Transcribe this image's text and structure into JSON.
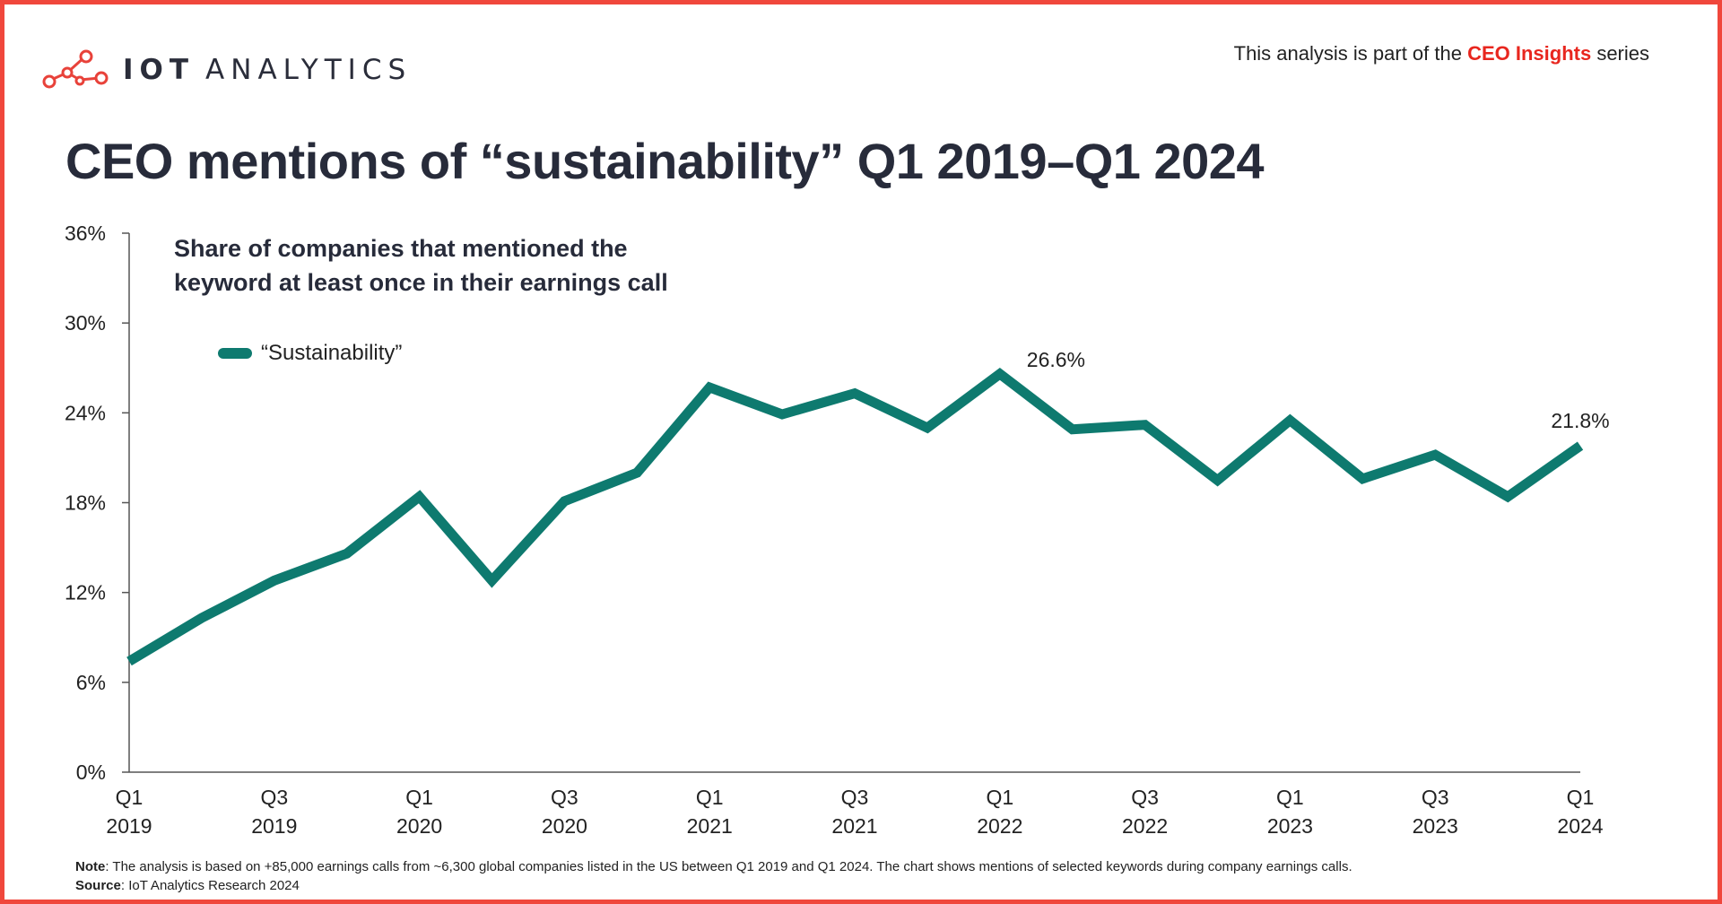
{
  "header": {
    "logo_text_bold": "IOT",
    "logo_text_light": "ANALYTICS",
    "series_prefix": "This analysis is part of the ",
    "series_highlight": "CEO Insights",
    "series_suffix": " series",
    "title": "CEO mentions of “sustainability” Q1 2019–Q1 2024"
  },
  "chart_data": {
    "type": "line",
    "subtitle_line1": "Share of companies that mentioned the",
    "subtitle_line2": "keyword at least once in their earnings call",
    "x": [
      "Q1 2019",
      "Q2 2019",
      "Q3 2019",
      "Q4 2019",
      "Q1 2020",
      "Q2 2020",
      "Q3 2020",
      "Q4 2020",
      "Q1 2021",
      "Q2 2021",
      "Q3 2021",
      "Q4 2021",
      "Q1 2022",
      "Q2 2022",
      "Q3 2022",
      "Q4 2022",
      "Q1 2023",
      "Q2 2023",
      "Q3 2023",
      "Q4 2023",
      "Q1 2024"
    ],
    "x_tick_labels": [
      {
        "index": 0,
        "q": "Q1",
        "year": "2019"
      },
      {
        "index": 2,
        "q": "Q3",
        "year": "2019"
      },
      {
        "index": 4,
        "q": "Q1",
        "year": "2020"
      },
      {
        "index": 6,
        "q": "Q3",
        "year": "2020"
      },
      {
        "index": 8,
        "q": "Q1",
        "year": "2021"
      },
      {
        "index": 10,
        "q": "Q3",
        "year": "2021"
      },
      {
        "index": 12,
        "q": "Q1",
        "year": "2022"
      },
      {
        "index": 14,
        "q": "Q3",
        "year": "2022"
      },
      {
        "index": 16,
        "q": "Q1",
        "year": "2023"
      },
      {
        "index": 18,
        "q": "Q3",
        "year": "2023"
      },
      {
        "index": 20,
        "q": "Q1",
        "year": "2024"
      }
    ],
    "series": [
      {
        "name": "“Sustainability”",
        "color": "#0e7a6f",
        "values": [
          7.4,
          10.3,
          12.8,
          14.6,
          18.4,
          12.8,
          18.1,
          20.0,
          25.7,
          23.9,
          25.3,
          23.0,
          26.6,
          22.9,
          23.2,
          19.5,
          23.5,
          19.6,
          21.2,
          18.4,
          21.8
        ]
      }
    ],
    "annotations": [
      {
        "index": 12,
        "label": "26.6%"
      },
      {
        "index": 20,
        "label": "21.8%"
      }
    ],
    "y_ticks": [
      "0%",
      "6%",
      "12%",
      "18%",
      "24%",
      "30%",
      "36%"
    ],
    "y_tick_values": [
      0,
      6,
      12,
      18,
      24,
      30,
      36
    ],
    "ylim": [
      0,
      36
    ],
    "grid": false,
    "legend_position": "top-left"
  },
  "footer": {
    "note_label": "Note",
    "note_text": ": The analysis is based on +85,000 earnings calls from ~6,300 global companies listed in the US between Q1 2019 and Q1 2024. The chart shows mentions of selected keywords during company earnings calls.",
    "source_label": "Source",
    "source_text": ": IoT Analytics Research 2024"
  }
}
